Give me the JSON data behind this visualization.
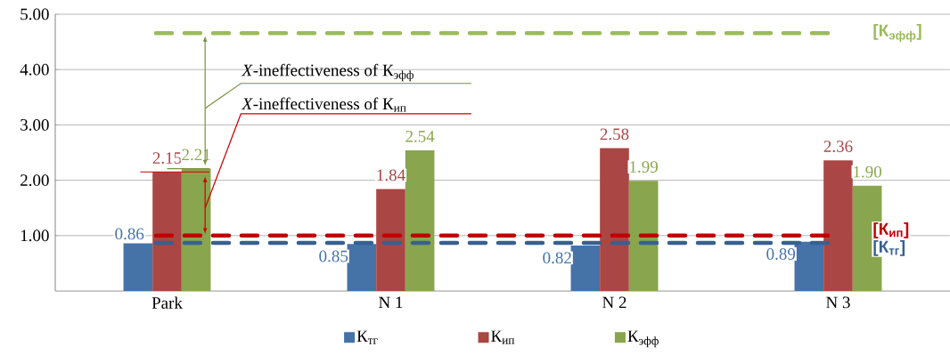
{
  "chart_data": {
    "type": "bar",
    "categories": [
      "Park",
      "N 1",
      "N 2",
      "N 3"
    ],
    "series": [
      {
        "name": "К$_{тг}$",
        "color": "#4572a7",
        "values": [
          0.86,
          0.85,
          0.82,
          0.89
        ],
        "value_labels": [
          "0.86",
          "0.85",
          "0.82",
          "0.89"
        ]
      },
      {
        "name": "К$_{ип}$",
        "color": "#aa4643",
        "values": [
          2.15,
          1.84,
          2.58,
          2.36
        ],
        "value_labels": [
          "2.15",
          "1.84",
          "2.58",
          "2.36"
        ]
      },
      {
        "name": "К$_{эфф}$",
        "color": "#89a54e",
        "values": [
          2.21,
          2.54,
          1.99,
          1.9
        ],
        "value_labels": [
          "2.21",
          "2.54",
          "1.99",
          "1.90"
        ]
      }
    ],
    "ylim": [
      0,
      5
    ],
    "yticks": [
      {
        "value": 1,
        "label": "1.00"
      },
      {
        "value": 2,
        "label": "2.00"
      },
      {
        "value": 3,
        "label": "3.00"
      },
      {
        "value": 4,
        "label": "4.00"
      },
      {
        "value": 5,
        "label": "5.00"
      }
    ],
    "grid": "y",
    "legend": "bottom",
    "ref_lines": [
      {
        "axis": "y",
        "value": 4.66,
        "label": "[К$_{эфф}$]",
        "color": "#9bbb59",
        "line_style": "dashed"
      },
      {
        "axis": "y",
        "value": 1.0,
        "label": "[К$_{ип}$]",
        "color": "#c00000",
        "line_style": "dashed"
      },
      {
        "axis": "y",
        "value": 0.87,
        "label": "[К$_{тг}$]",
        "color": "#376092",
        "line_style": "dashed"
      }
    ],
    "annotations": [
      "*X*-ineffectiveness of К$_{эфф}$",
      "*X*-ineffectiveness of К$_{ип}$"
    ]
  }
}
